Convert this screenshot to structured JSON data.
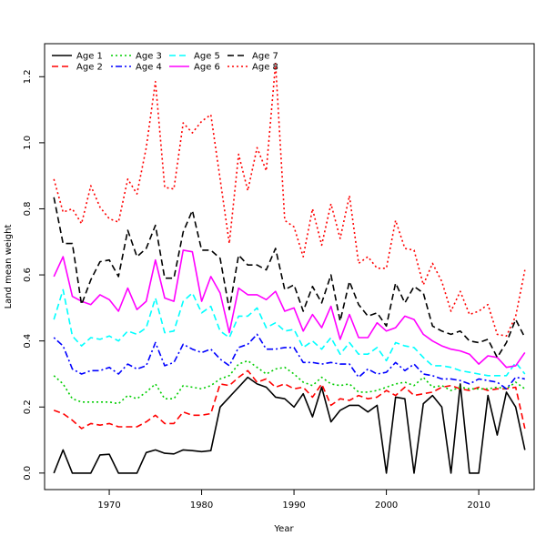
{
  "chart_data": {
    "type": "line",
    "xlabel": "Year",
    "ylabel": "Land mean weight",
    "xlim": [
      1963,
      2016
    ],
    "ylim": [
      -0.05,
      1.3
    ],
    "xticks": [
      1970,
      1980,
      1990,
      2000,
      2010
    ],
    "yticks": [
      0.0,
      0.2,
      0.4,
      0.6,
      0.8,
      1.0,
      1.2
    ],
    "ytick_labels": [
      "0.0",
      "0.2",
      "0.4",
      "0.6",
      "0.8",
      "1.0",
      "1.2"
    ],
    "grid": false,
    "legend_placement": "top-left",
    "x": [
      1964,
      1965,
      1966,
      1967,
      1968,
      1969,
      1970,
      1971,
      1972,
      1973,
      1974,
      1975,
      1976,
      1977,
      1978,
      1979,
      1980,
      1981,
      1982,
      1983,
      1984,
      1985,
      1986,
      1987,
      1988,
      1989,
      1990,
      1991,
      1992,
      1993,
      1994,
      1995,
      1996,
      1997,
      1998,
      1999,
      2000,
      2001,
      2002,
      2003,
      2004,
      2005,
      2006,
      2007,
      2008,
      2009,
      2010,
      2011,
      2012,
      2013,
      2014,
      2015
    ],
    "series": [
      {
        "name": "Age 1",
        "color": "#000000",
        "dash": "solid",
        "values": [
          0.0,
          0.07,
          0.0,
          0.0,
          0.0,
          0.055,
          0.057,
          0.0,
          0.0,
          0.0,
          0.062,
          0.07,
          0.06,
          0.058,
          0.07,
          0.068,
          0.065,
          0.068,
          0.2,
          0.23,
          0.26,
          0.29,
          0.27,
          0.26,
          0.23,
          0.225,
          0.2,
          0.24,
          0.17,
          0.26,
          0.155,
          0.19,
          0.205,
          0.205,
          0.185,
          0.205,
          0.0,
          0.23,
          0.225,
          0.0,
          0.21,
          0.235,
          0.2,
          0.0,
          0.27,
          0.0,
          0.0,
          0.235,
          0.115,
          0.245,
          0.2,
          0.07
        ]
      },
      {
        "name": "Age 2",
        "color": "#ff0000",
        "dash": "long",
        "values": [
          0.19,
          0.18,
          0.16,
          0.135,
          0.15,
          0.145,
          0.15,
          0.14,
          0.14,
          0.14,
          0.155,
          0.175,
          0.15,
          0.15,
          0.185,
          0.175,
          0.175,
          0.18,
          0.27,
          0.265,
          0.29,
          0.31,
          0.275,
          0.285,
          0.26,
          0.27,
          0.255,
          0.26,
          0.23,
          0.27,
          0.205,
          0.225,
          0.22,
          0.235,
          0.225,
          0.23,
          0.25,
          0.235,
          0.26,
          0.235,
          0.24,
          0.245,
          0.26,
          0.265,
          0.255,
          0.25,
          0.26,
          0.25,
          0.255,
          0.255,
          0.26,
          0.135
        ]
      },
      {
        "name": "Age 3",
        "color": "#00cd00",
        "dash": "dotted",
        "values": [
          0.295,
          0.27,
          0.225,
          0.215,
          0.215,
          0.215,
          0.215,
          0.21,
          0.235,
          0.225,
          0.245,
          0.27,
          0.225,
          0.225,
          0.265,
          0.26,
          0.255,
          0.265,
          0.285,
          0.295,
          0.33,
          0.34,
          0.32,
          0.3,
          0.315,
          0.32,
          0.3,
          0.275,
          0.265,
          0.29,
          0.27,
          0.265,
          0.27,
          0.245,
          0.245,
          0.25,
          0.26,
          0.27,
          0.275,
          0.265,
          0.29,
          0.26,
          0.265,
          0.25,
          0.26,
          0.255,
          0.255,
          0.255,
          0.26,
          0.255,
          0.275,
          0.255
        ]
      },
      {
        "name": "Age 4",
        "color": "#0000ff",
        "dash": "dotdash",
        "values": [
          0.41,
          0.385,
          0.315,
          0.3,
          0.31,
          0.31,
          0.32,
          0.3,
          0.33,
          0.315,
          0.325,
          0.395,
          0.325,
          0.335,
          0.39,
          0.375,
          0.365,
          0.375,
          0.345,
          0.325,
          0.38,
          0.39,
          0.42,
          0.375,
          0.375,
          0.38,
          0.38,
          0.335,
          0.335,
          0.33,
          0.335,
          0.33,
          0.33,
          0.29,
          0.315,
          0.3,
          0.305,
          0.335,
          0.31,
          0.33,
          0.3,
          0.295,
          0.285,
          0.285,
          0.28,
          0.27,
          0.285,
          0.28,
          0.275,
          0.255,
          0.29,
          0.285
        ]
      },
      {
        "name": "Age 5",
        "color": "#00ffff",
        "dash": "long",
        "values": [
          0.465,
          0.555,
          0.415,
          0.385,
          0.41,
          0.405,
          0.415,
          0.4,
          0.43,
          0.42,
          0.44,
          0.53,
          0.425,
          0.43,
          0.52,
          0.545,
          0.485,
          0.505,
          0.43,
          0.41,
          0.475,
          0.475,
          0.5,
          0.44,
          0.455,
          0.43,
          0.435,
          0.38,
          0.4,
          0.375,
          0.41,
          0.36,
          0.395,
          0.36,
          0.36,
          0.38,
          0.34,
          0.395,
          0.385,
          0.38,
          0.35,
          0.325,
          0.325,
          0.32,
          0.31,
          0.305,
          0.3,
          0.295,
          0.295,
          0.295,
          0.335,
          0.3
        ]
      },
      {
        "name": "Age 6",
        "color": "#ff00ff",
        "dash": "solid",
        "values": [
          0.595,
          0.655,
          0.535,
          0.52,
          0.51,
          0.54,
          0.525,
          0.49,
          0.56,
          0.495,
          0.52,
          0.645,
          0.53,
          0.52,
          0.675,
          0.67,
          0.52,
          0.595,
          0.545,
          0.425,
          0.56,
          0.54,
          0.54,
          0.525,
          0.55,
          0.49,
          0.5,
          0.43,
          0.48,
          0.44,
          0.505,
          0.405,
          0.48,
          0.41,
          0.41,
          0.455,
          0.43,
          0.44,
          0.475,
          0.465,
          0.42,
          0.4,
          0.385,
          0.375,
          0.37,
          0.36,
          0.33,
          0.355,
          0.35,
          0.32,
          0.325,
          0.365
        ]
      },
      {
        "name": "Age 7",
        "color": "#000000",
        "dash": "long",
        "values": [
          0.835,
          0.695,
          0.695,
          0.51,
          0.585,
          0.64,
          0.645,
          0.595,
          0.735,
          0.655,
          0.68,
          0.75,
          0.59,
          0.59,
          0.73,
          0.795,
          0.675,
          0.675,
          0.65,
          0.495,
          0.66,
          0.63,
          0.63,
          0.615,
          0.68,
          0.555,
          0.57,
          0.49,
          0.565,
          0.515,
          0.6,
          0.46,
          0.58,
          0.51,
          0.475,
          0.485,
          0.445,
          0.575,
          0.515,
          0.565,
          0.545,
          0.445,
          0.43,
          0.42,
          0.43,
          0.4,
          0.395,
          0.405,
          0.35,
          0.395,
          0.465,
          0.41
        ]
      },
      {
        "name": "Age 8",
        "color": "#ff0000",
        "dash": "dotted",
        "values": [
          0.89,
          0.79,
          0.8,
          0.755,
          0.87,
          0.805,
          0.77,
          0.76,
          0.89,
          0.845,
          0.985,
          1.185,
          0.865,
          0.86,
          1.06,
          1.03,
          1.065,
          1.085,
          0.89,
          0.695,
          0.965,
          0.855,
          0.985,
          0.915,
          1.24,
          0.765,
          0.745,
          0.655,
          0.8,
          0.69,
          0.815,
          0.71,
          0.84,
          0.635,
          0.655,
          0.62,
          0.62,
          0.765,
          0.68,
          0.675,
          0.57,
          0.635,
          0.58,
          0.49,
          0.55,
          0.48,
          0.49,
          0.51,
          0.42,
          0.415,
          0.475,
          0.615
        ]
      }
    ]
  }
}
